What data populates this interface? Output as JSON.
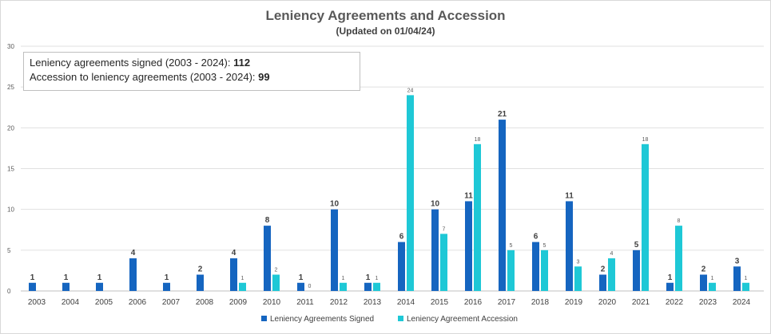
{
  "chart_data": {
    "type": "bar",
    "title": "Leniency Agreements and Accession",
    "subtitle": "(Updated on 01/04/24)",
    "xlabel": "",
    "ylabel": "",
    "ylim": [
      0,
      30
    ],
    "yticks": [
      0,
      5,
      10,
      15,
      20,
      25,
      30
    ],
    "grid": true,
    "legend": "bottom",
    "categories": [
      "2003",
      "2004",
      "2005",
      "2006",
      "2007",
      "2008",
      "2009",
      "2010",
      "2011",
      "2012",
      "2013",
      "2014",
      "2015",
      "2016",
      "2017",
      "2018",
      "2019",
      "2020",
      "2021",
      "2022",
      "2023",
      "2024"
    ],
    "series": [
      {
        "name": "Leniency Agreements Signed",
        "color": "#1565c0",
        "values": [
          1,
          1,
          1,
          4,
          1,
          2,
          4,
          8,
          1,
          10,
          1,
          6,
          10,
          11,
          21,
          6,
          11,
          2,
          5,
          1,
          2,
          3
        ]
      },
      {
        "name": "Leniency Agreement Accession",
        "color": "#1ec8d6",
        "values": [
          null,
          null,
          null,
          null,
          null,
          null,
          1,
          2,
          0,
          1,
          1,
          24,
          7,
          18,
          5,
          5,
          3,
          4,
          18,
          8,
          1,
          1
        ]
      }
    ],
    "annotation": {
      "line1_label": "Leniency agreements signed (2003 - 2024): ",
      "line1_value": "112",
      "line2_label": "Accession to leniency agreements (2003 - 2024): ",
      "line2_value": "99"
    }
  }
}
